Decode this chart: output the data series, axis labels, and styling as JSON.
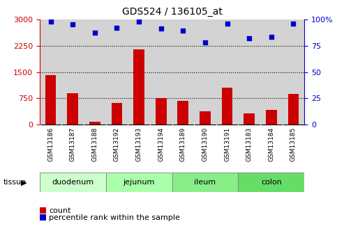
{
  "title": "GDS524 / 136105_at",
  "samples": [
    "GSM13186",
    "GSM13187",
    "GSM13188",
    "GSM13192",
    "GSM13193",
    "GSM13194",
    "GSM13189",
    "GSM13190",
    "GSM13191",
    "GSM13183",
    "GSM13184",
    "GSM13185"
  ],
  "counts": [
    1420,
    900,
    80,
    630,
    2150,
    750,
    670,
    380,
    1050,
    330,
    420,
    870
  ],
  "percentiles": [
    98,
    95,
    87,
    92,
    98,
    91,
    89,
    78,
    96,
    82,
    83,
    96
  ],
  "tissues": [
    {
      "label": "duodenum",
      "start": 0,
      "end": 3,
      "color": "#ccffcc"
    },
    {
      "label": "jejunum",
      "start": 3,
      "end": 6,
      "color": "#aaffaa"
    },
    {
      "label": "ileum",
      "start": 6,
      "end": 9,
      "color": "#88ee88"
    },
    {
      "label": "colon",
      "start": 9,
      "end": 12,
      "color": "#66dd66"
    }
  ],
  "bar_color": "#cc0000",
  "dot_color": "#0000cc",
  "left_ylim": [
    0,
    3000
  ],
  "left_yticks": [
    0,
    750,
    1500,
    2250,
    3000
  ],
  "right_ylim": [
    0,
    100
  ],
  "right_yticks": [
    0,
    25,
    50,
    75,
    100
  ],
  "grid_color": "#000000",
  "bg_color": "#ffffff",
  "bar_bg_color": "#d3d3d3",
  "tissue_label": "tissue",
  "legend_count": "count",
  "legend_percentile": "percentile rank within the sample",
  "title_color": "#000000",
  "left_axis_color": "#cc0000",
  "right_axis_color": "#0000cc"
}
